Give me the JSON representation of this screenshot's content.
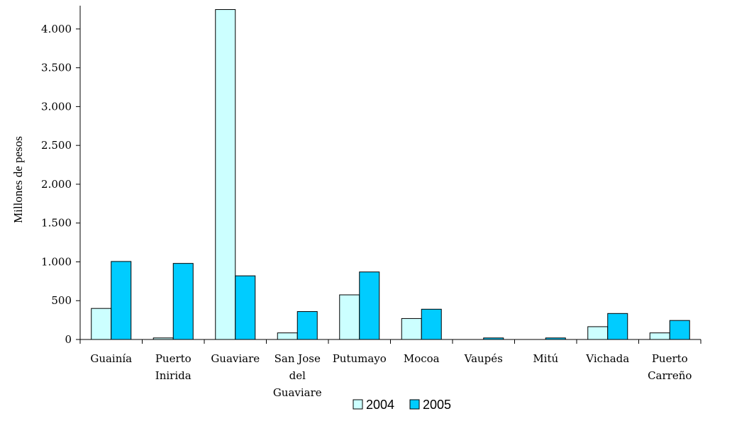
{
  "chart_data": {
    "type": "bar",
    "title": "",
    "xlabel": "",
    "ylabel": "Millones de pesos",
    "ylim": [
      0,
      4300
    ],
    "yticks": [
      0,
      500,
      1000,
      1500,
      2000,
      2500,
      3000,
      3500,
      4000
    ],
    "ytick_labels": [
      "0",
      "500",
      "1.000",
      "1.500",
      "2.000",
      "2.500",
      "3.000",
      "3.500",
      "4.000"
    ],
    "grid": false,
    "legend_position": "bottom",
    "categories": [
      [
        "Guainía"
      ],
      [
        "Puerto",
        "Inirida"
      ],
      [
        "Guaviare"
      ],
      [
        "San Jose",
        "del",
        "Guaviare"
      ],
      [
        "Putumayo"
      ],
      [
        "Mocoa"
      ],
      [
        "Vaupés"
      ],
      [
        "Mitú"
      ],
      [
        "Vichada"
      ],
      [
        "Puerto",
        "Carreño"
      ]
    ],
    "series": [
      {
        "name": "2004",
        "color": "#ccffff",
        "values": [
          400,
          20,
          4250,
          85,
          575,
          270,
          0,
          0,
          165,
          85
        ]
      },
      {
        "name": "2005",
        "color": "#00ccff",
        "values": [
          1005,
          980,
          820,
          360,
          870,
          390,
          20,
          20,
          335,
          245
        ]
      }
    ]
  }
}
